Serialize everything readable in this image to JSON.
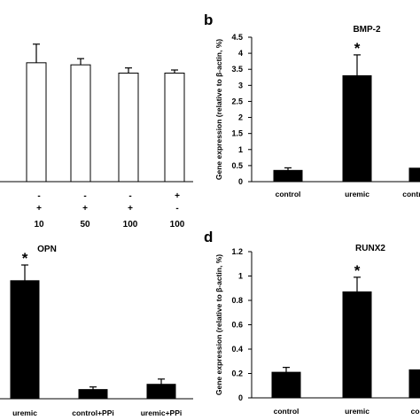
{
  "chart_data": [
    {
      "id": "a",
      "type": "bar",
      "panel_label": "",
      "title": "",
      "ylabel": "",
      "categories": [
        "",
        "",
        "",
        ""
      ],
      "values": [
        1.15,
        1.13,
        1.05,
        1.05
      ],
      "errors": [
        0.18,
        0.06,
        0.05,
        0.03
      ],
      "ylim": [
        0,
        1.5
      ],
      "bar_style": "white",
      "significant": [
        false,
        false,
        false,
        false
      ],
      "condition_rows": [
        [
          "-",
          "-",
          "-",
          "+"
        ],
        [
          "+",
          "+",
          "+",
          "-"
        ],
        [
          "10",
          "50",
          "100",
          "100"
        ]
      ]
    },
    {
      "id": "b",
      "type": "bar",
      "panel_label": "b",
      "title": "BMP-2",
      "ylabel": "Gene expression (relative to β-actin, %)",
      "categories": [
        "control",
        "uremic",
        "control+PPi"
      ],
      "values": [
        0.35,
        3.3,
        0.42
      ],
      "errors": [
        0.08,
        0.65,
        0.0
      ],
      "yticks": [
        "0",
        "0.5",
        "1",
        "1.5",
        "2",
        "2.5",
        "3",
        "3.5",
        "4",
        "4.5"
      ],
      "ylim": [
        0,
        4.5
      ],
      "bar_style": "black",
      "significant": [
        false,
        true,
        false
      ]
    },
    {
      "id": "c",
      "type": "bar",
      "panel_label": "",
      "title": "OPN",
      "ylabel": "",
      "categories": [
        "uremic",
        "control+PPi",
        "uremic+PPi"
      ],
      "values": [
        0.9,
        0.07,
        0.11
      ],
      "errors": [
        0.12,
        0.02,
        0.04
      ],
      "ylim": [
        0,
        1.25
      ],
      "bar_style": "black",
      "significant": [
        true,
        false,
        false
      ]
    },
    {
      "id": "d",
      "type": "bar",
      "panel_label": "d",
      "title": "RUNX2",
      "ylabel": "Gene expression (relative to β-actin, %)",
      "categories": [
        "control",
        "uremic",
        "control"
      ],
      "values": [
        0.21,
        0.87,
        0.23
      ],
      "errors": [
        0.04,
        0.12,
        0.0
      ],
      "yticks": [
        "0",
        "0.2",
        "0.4",
        "0.6",
        "0.8",
        "1",
        "1.2"
      ],
      "ylim": [
        0,
        1.2
      ],
      "bar_style": "black",
      "significant": [
        false,
        true,
        false
      ]
    }
  ],
  "significance_symbol": "*"
}
